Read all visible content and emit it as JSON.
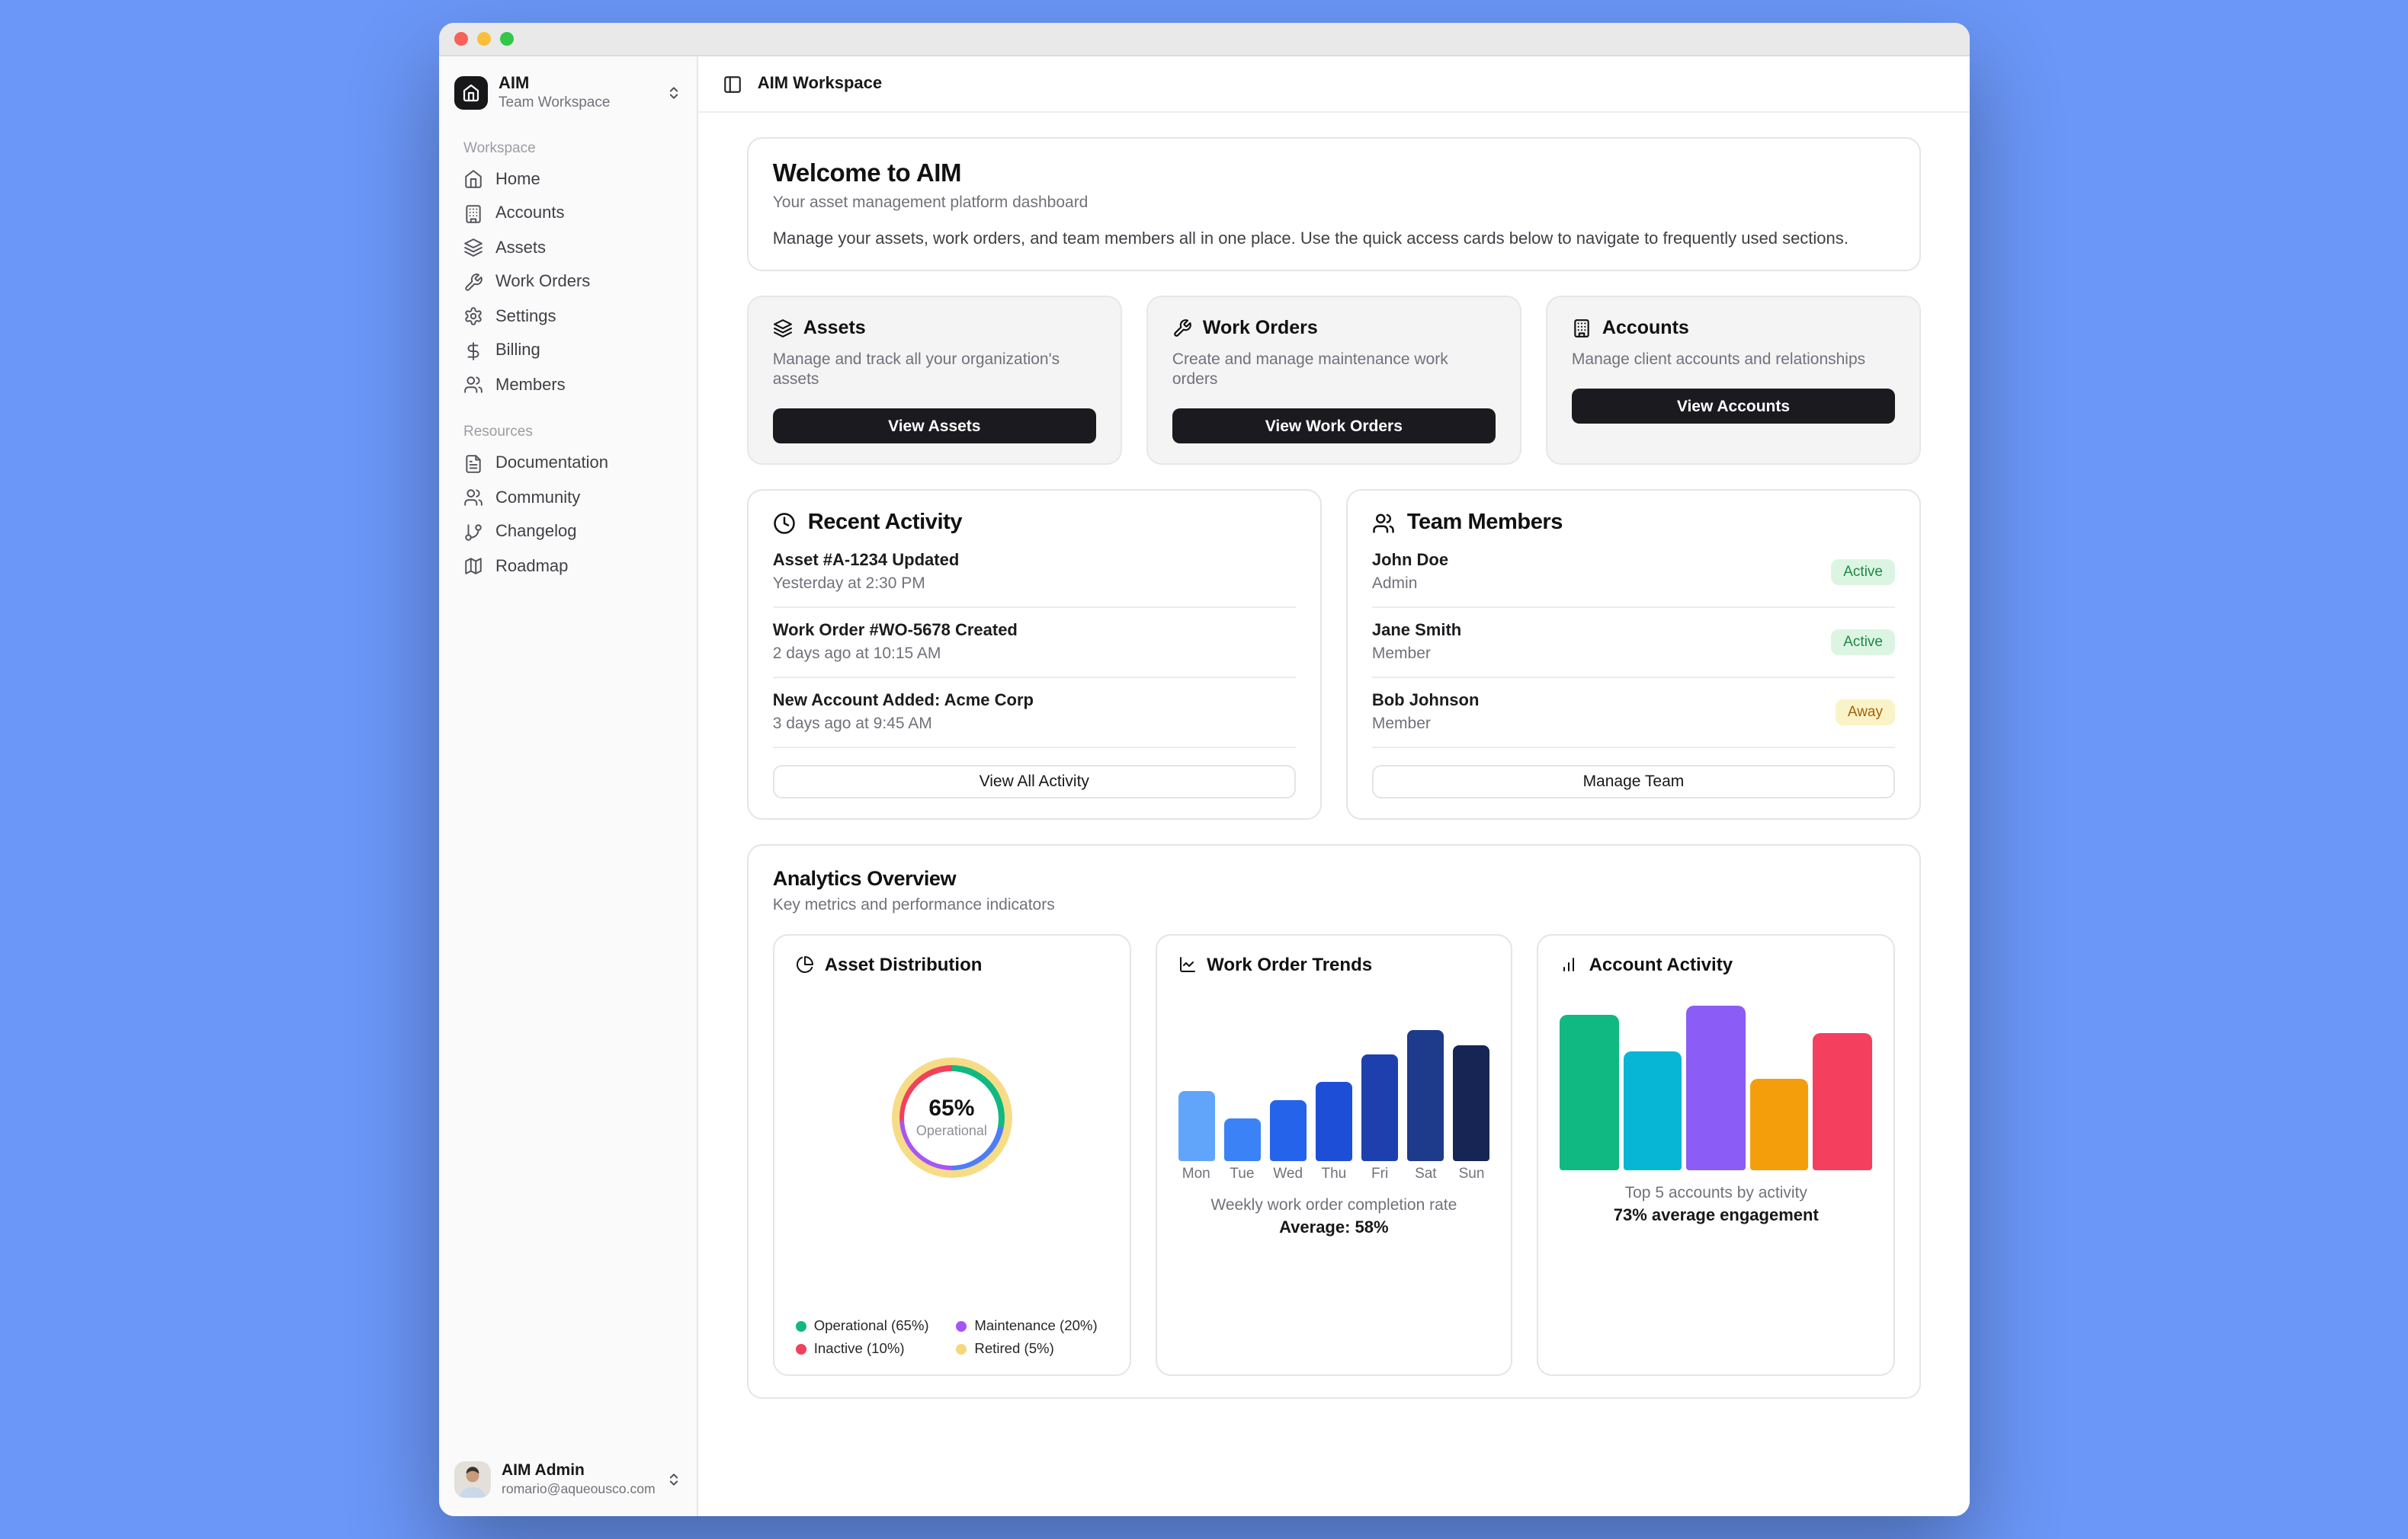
{
  "theme": {
    "desktop_background": "#6b97f8",
    "window_titlebar": "#e9e9e9",
    "sidebar_background": "#fafafa",
    "primary_button": "#1b1b1f",
    "badge_active_bg": "#dcf5e3",
    "badge_active_text": "#1f8744",
    "badge_away_bg": "#faf3c8",
    "badge_away_text": "#a16207"
  },
  "sidebar": {
    "workspace_name": "AIM",
    "workspace_type": "Team Workspace",
    "sections": [
      {
        "label": "Workspace",
        "items": [
          {
            "label": "Home"
          },
          {
            "label": "Accounts"
          },
          {
            "label": "Assets"
          },
          {
            "label": "Work Orders"
          },
          {
            "label": "Settings"
          },
          {
            "label": "Billing"
          },
          {
            "label": "Members"
          }
        ]
      },
      {
        "label": "Resources",
        "items": [
          {
            "label": "Documentation"
          },
          {
            "label": "Community"
          },
          {
            "label": "Changelog"
          },
          {
            "label": "Roadmap"
          }
        ]
      }
    ],
    "user": {
      "name": "AIM Admin",
      "email": "romario@aqueousco.com"
    }
  },
  "topbar": {
    "title": "AIM Workspace"
  },
  "welcome": {
    "title": "Welcome to AIM",
    "subtitle": "Your asset management platform dashboard",
    "description": "Manage your assets, work orders, and team members all in one place. Use the quick access cards below to navigate to frequently used sections."
  },
  "quick_cards": [
    {
      "title": "Assets",
      "description": "Manage and track all your organization's assets",
      "button": "View Assets"
    },
    {
      "title": "Work Orders",
      "description": "Create and manage maintenance work orders",
      "button": "View Work Orders"
    },
    {
      "title": "Accounts",
      "description": "Manage client accounts and relationships",
      "button": "View Accounts"
    }
  ],
  "recent_activity": {
    "title": "Recent Activity",
    "items": [
      {
        "title": "Asset #A-1234 Updated",
        "time": "Yesterday at 2:30 PM"
      },
      {
        "title": "Work Order #WO-5678 Created",
        "time": "2 days ago at 10:15 AM"
      },
      {
        "title": "New Account Added: Acme Corp",
        "time": "3 days ago at 9:45 AM"
      }
    ],
    "button": "View All Activity"
  },
  "team_members": {
    "title": "Team Members",
    "members": [
      {
        "name": "John Doe",
        "role": "Admin",
        "status": "Active"
      },
      {
        "name": "Jane Smith",
        "role": "Member",
        "status": "Active"
      },
      {
        "name": "Bob Johnson",
        "role": "Member",
        "status": "Away"
      }
    ],
    "button": "Manage Team"
  },
  "analytics": {
    "title": "Analytics Overview",
    "subtitle": "Key metrics and performance indicators"
  },
  "chart_data": [
    {
      "type": "pie",
      "title": "Asset Distribution",
      "center_value": "65%",
      "center_label": "Operational",
      "slices": [
        {
          "label": "Operational",
          "value": 65,
          "color": "#10b981",
          "legend": "Operational (65%)"
        },
        {
          "label": "Maintenance",
          "value": 20,
          "color": "#a855f7",
          "legend": "Maintenance (20%)"
        },
        {
          "label": "Inactive",
          "value": 10,
          "color": "#f0425c",
          "legend": "Inactive (10%)"
        },
        {
          "label": "Retired",
          "value": 5,
          "color": "#f5d87b",
          "legend": "Retired (5%)"
        }
      ],
      "outer_ring_color": "#f6dc86",
      "ring_segments": [
        {
          "color": "#10b981",
          "percent": 28
        },
        {
          "color": "#4d7df7",
          "percent": 22
        },
        {
          "color": "#a855f7",
          "percent": 24
        },
        {
          "color": "#f0425c",
          "percent": 26
        }
      ],
      "legend_position": "bottom"
    },
    {
      "type": "bar",
      "title": "Work Order Trends",
      "categories": [
        "Mon",
        "Tue",
        "Wed",
        "Thu",
        "Fri",
        "Sat",
        "Sun"
      ],
      "values": [
        47,
        29,
        41,
        53,
        71,
        88,
        77
      ],
      "colors": [
        "#60a5fa",
        "#3b82f6",
        "#2563eb",
        "#1d4ed8",
        "#1e40af",
        "#1e3a8a",
        "#172554"
      ],
      "ylim": [
        0,
        100
      ],
      "grid": false,
      "caption": "Weekly work order completion rate",
      "summary": "Average: 58%"
    },
    {
      "type": "bar",
      "title": "Account Activity",
      "values": [
        85,
        65,
        90,
        50,
        75
      ],
      "colors": [
        "#10b981",
        "#06b6d4",
        "#8b5cf6",
        "#f59e0b",
        "#f43f5e"
      ],
      "ylim": [
        0,
        100
      ],
      "grid": false,
      "caption": "Top 5 accounts by activity",
      "summary": "73% average engagement"
    }
  ]
}
